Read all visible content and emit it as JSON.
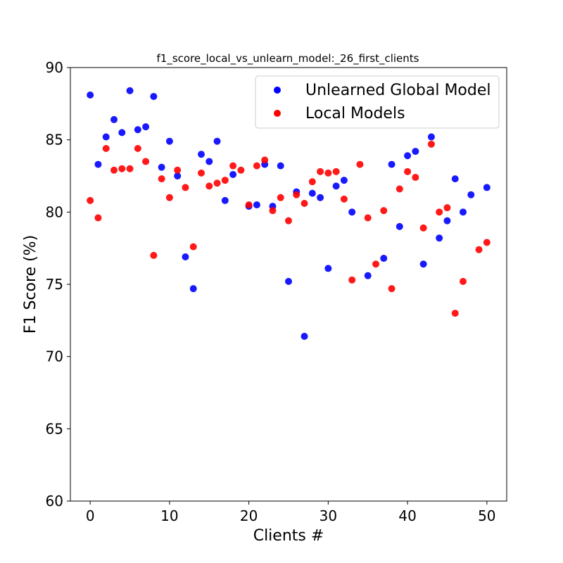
{
  "chart_data": {
    "type": "scatter",
    "title": "f1_score_local_vs_unlearn_model:_26_first_clients",
    "xlabel": "Clients #",
    "ylabel": "F1 Score (%)",
    "xlim": [
      -2.5,
      52.5
    ],
    "ylim": [
      60,
      90
    ],
    "xticks": [
      "0",
      "10",
      "20",
      "30",
      "40",
      "50"
    ],
    "yticks": [
      "60",
      "65",
      "70",
      "75",
      "80",
      "85",
      "90"
    ],
    "legend_position": "top-right",
    "grid": false,
    "series": [
      {
        "name": "Unlearned Global Model",
        "color": "#0000ff",
        "points": [
          [
            0,
            88.1
          ],
          [
            1,
            83.3
          ],
          [
            2,
            85.2
          ],
          [
            3,
            86.4
          ],
          [
            4,
            85.5
          ],
          [
            5,
            88.4
          ],
          [
            6,
            85.7
          ],
          [
            7,
            85.9
          ],
          [
            8,
            88.0
          ],
          [
            9,
            83.1
          ],
          [
            10,
            84.9
          ],
          [
            11,
            82.5
          ],
          [
            12,
            76.9
          ],
          [
            13,
            74.7
          ],
          [
            14,
            84.0
          ],
          [
            15,
            83.5
          ],
          [
            16,
            84.9
          ],
          [
            17,
            80.8
          ],
          [
            18,
            82.6
          ],
          [
            20,
            80.4
          ],
          [
            21,
            80.5
          ],
          [
            22,
            83.3
          ],
          [
            23,
            80.4
          ],
          [
            24,
            83.2
          ],
          [
            25,
            75.2
          ],
          [
            26,
            81.4
          ],
          [
            27,
            71.4
          ],
          [
            28,
            81.3
          ],
          [
            29,
            81.0
          ],
          [
            30,
            76.1
          ],
          [
            31,
            81.8
          ],
          [
            32,
            82.2
          ],
          [
            33,
            80.0
          ],
          [
            35,
            75.6
          ],
          [
            37,
            76.8
          ],
          [
            38,
            83.3
          ],
          [
            39,
            79.0
          ],
          [
            40,
            83.9
          ],
          [
            41,
            84.2
          ],
          [
            42,
            76.4
          ],
          [
            43,
            85.2
          ],
          [
            44,
            78.2
          ],
          [
            45,
            79.4
          ],
          [
            46,
            82.3
          ],
          [
            47,
            80.0
          ],
          [
            48,
            81.2
          ],
          [
            50,
            81.7
          ]
        ]
      },
      {
        "name": "Local Models",
        "color": "#ff0000",
        "points": [
          [
            0,
            80.8
          ],
          [
            1,
            79.6
          ],
          [
            2,
            84.4
          ],
          [
            3,
            82.9
          ],
          [
            4,
            83.0
          ],
          [
            5,
            83.0
          ],
          [
            6,
            84.4
          ],
          [
            7,
            83.5
          ],
          [
            8,
            77.0
          ],
          [
            9,
            82.3
          ],
          [
            10,
            81.0
          ],
          [
            11,
            82.9
          ],
          [
            12,
            81.7
          ],
          [
            13,
            77.6
          ],
          [
            14,
            82.7
          ],
          [
            15,
            81.8
          ],
          [
            16,
            82.0
          ],
          [
            17,
            82.2
          ],
          [
            18,
            83.2
          ],
          [
            19,
            82.9
          ],
          [
            20,
            80.5
          ],
          [
            21,
            83.2
          ],
          [
            22,
            83.6
          ],
          [
            23,
            80.1
          ],
          [
            24,
            81.0
          ],
          [
            25,
            79.4
          ],
          [
            26,
            81.2
          ],
          [
            27,
            80.6
          ],
          [
            28,
            82.1
          ],
          [
            29,
            82.8
          ],
          [
            30,
            82.7
          ],
          [
            31,
            82.8
          ],
          [
            32,
            80.9
          ],
          [
            33,
            75.3
          ],
          [
            34,
            83.3
          ],
          [
            35,
            79.6
          ],
          [
            36,
            76.4
          ],
          [
            37,
            80.1
          ],
          [
            38,
            74.7
          ],
          [
            39,
            81.6
          ],
          [
            40,
            82.8
          ],
          [
            41,
            82.4
          ],
          [
            42,
            78.9
          ],
          [
            43,
            84.7
          ],
          [
            44,
            80.0
          ],
          [
            45,
            80.3
          ],
          [
            46,
            73.0
          ],
          [
            47,
            75.2
          ],
          [
            49,
            77.4
          ],
          [
            50,
            77.9
          ]
        ]
      }
    ]
  }
}
